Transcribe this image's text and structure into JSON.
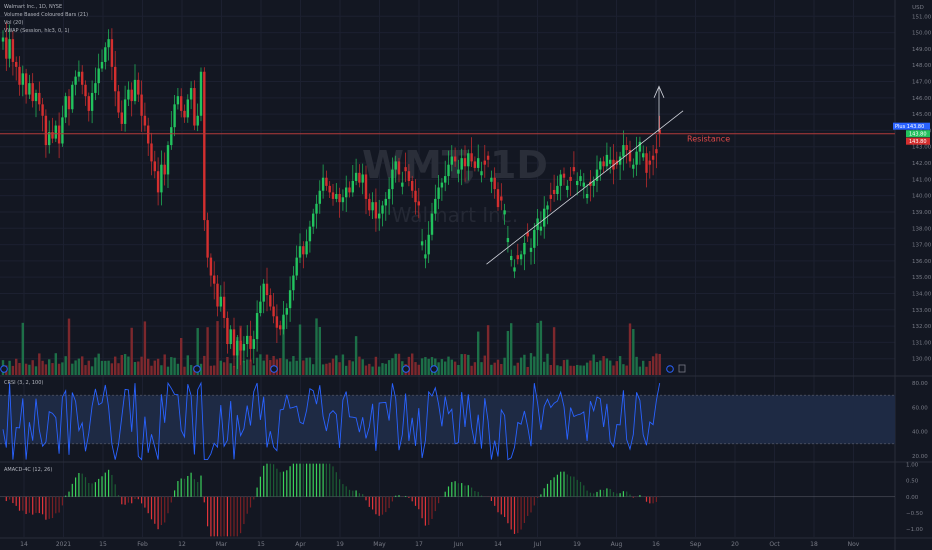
{
  "header": {
    "symbol_line": "Walmart Inc., 1D, NYSE",
    "indicators": [
      "Volume Based Coloured Bars (21)",
      "Vol (20)",
      "VWAP (Session, hlc3, 0, 1)"
    ],
    "currency": "USD"
  },
  "watermark": {
    "ticker": "WMT, 1D",
    "name": "Walmart Inc."
  },
  "annotations": {
    "resistance_label": "Resistance"
  },
  "price_tags": {
    "plus": "Plus",
    "last": "143.80",
    "plus_value": "143.80"
  },
  "event_badges": [
    "D",
    "E"
  ],
  "colors": {
    "background": "#131722",
    "up": "#22c35e",
    "down": "#d32f2f",
    "resistance": "#b23a3a",
    "crsi_line": "#2962ff",
    "crsi_band": "#1e2a44",
    "macd_pos": "#3bd15a",
    "macd_neg": "#e0343a",
    "text": "#787b86"
  },
  "chart_data": [
    {
      "type": "candlestick",
      "title": "Walmart Inc., 1D, NYSE",
      "ylabel": "USD",
      "ylim": [
        129,
        152
      ],
      "y_ticks": [
        130,
        131,
        132,
        133,
        134,
        135,
        136,
        137,
        138,
        139,
        140,
        141,
        142,
        143,
        144,
        145,
        146,
        147,
        148,
        149,
        150,
        151
      ],
      "x_ticks": [
        "14",
        "2021",
        "15",
        "Feb",
        "12",
        "Mar",
        "15",
        "Apr",
        "19",
        "May",
        "17",
        "Jun",
        "14",
        "Jul",
        "19",
        "Aug",
        "16",
        "Sep",
        "20",
        "Oct",
        "18",
        "Nov"
      ],
      "resistance_level": 143.8,
      "trendline": [
        [
          135.8,
          0.522
        ],
        [
          145.2,
          0.69
        ]
      ],
      "close": [
        149.7,
        148.4,
        149.6,
        148.2,
        147.9,
        146.8,
        147.5,
        146.2,
        146.9,
        145.8,
        146.3,
        145.6,
        144.9,
        143.1,
        143.9,
        143.5,
        144.3,
        143.2,
        144.8,
        146.1,
        145.3,
        146.8,
        147.3,
        147.6,
        146.8,
        146.1,
        145.2,
        146.3,
        146.9,
        147.8,
        148.2,
        149.1,
        149.6,
        147.9,
        146.4,
        145.1,
        144.4,
        145.9,
        146.5,
        145.8,
        147.1,
        146.2,
        144.9,
        144.3,
        143.2,
        142.1,
        141.5,
        140.2,
        141.9,
        141.3,
        143.1,
        144.2,
        145.6,
        146.1,
        145.2,
        144.8,
        145.9,
        146.6,
        144.3,
        144.9,
        147.6,
        138.5,
        136.2,
        135.1,
        134.6,
        133.2,
        133.8,
        132.5,
        130.9,
        131.8,
        130.2,
        131.1,
        130.5,
        130.9,
        131.4,
        130.6,
        131.2,
        132.8,
        133.5,
        134.6,
        133.9,
        133.2,
        132.6,
        131.9,
        131.8,
        132.7,
        133.1,
        134.2,
        135.1,
        136.2,
        136.9,
        136.4,
        137.2,
        138.1,
        138.9,
        139.5,
        140.3,
        141.1,
        140.6,
        140.2,
        139.8,
        140.1,
        139.6,
        139.9,
        140.5,
        140.2,
        140.9,
        141.4,
        140.8,
        141.3,
        139.8,
        139.1,
        139.6,
        138.6,
        138.9,
        139.4,
        139.8,
        140.4,
        141.6,
        142.1,
        141.3,
        140.8,
        141.5,
        140.9,
        140.3,
        139.6,
        139.4,
        137.2,
        136.4,
        137.6,
        138.9,
        139.8,
        140.5,
        140.8,
        141.2,
        141.9,
        142.4,
        142.1,
        141.6,
        142.3,
        141.8,
        142.6,
        142.1,
        141.7,
        142.3,
        141.5,
        141.9,
        142.2,
        141.1,
        140.4,
        139.3,
        139.7,
        139.1,
        137.4,
        136.3,
        135.6,
        136.1,
        136.4,
        137.1,
        137.5,
        136.8,
        137.9,
        138.6,
        138.1,
        139.2,
        139.4,
        139.8,
        140.1,
        140.6,
        141.3,
        141.1,
        140.6,
        140.9,
        141.5,
        140.9,
        141.2,
        140.8,
        140.1,
        140.6,
        140.9,
        141.6,
        142.1,
        141.8,
        142.5,
        142.2,
        141.6,
        141.9,
        142.4,
        143.1,
        142.8,
        142.1,
        141.9,
        142.7,
        143.3,
        142.6,
        141.4,
        141.9,
        142.2,
        142.6,
        143.8
      ],
      "up_days": [
        0,
        2,
        6,
        8,
        10,
        14,
        16,
        18,
        19,
        21,
        22,
        23,
        27,
        28,
        29,
        30,
        31,
        32,
        37,
        38,
        40,
        48,
        50,
        51,
        52,
        53,
        56,
        57,
        59,
        60,
        66,
        69,
        71,
        73,
        74,
        76,
        77,
        78,
        79,
        85,
        86,
        87,
        88,
        89,
        90,
        92,
        93,
        94,
        95,
        96,
        97,
        101,
        103,
        104,
        106,
        107,
        109,
        112,
        114,
        115,
        116,
        117,
        118,
        119,
        121,
        127,
        128,
        129,
        130,
        131,
        132,
        133,
        134,
        135,
        136,
        138,
        139,
        141,
        144,
        145,
        148,
        152,
        153,
        154,
        155,
        157,
        158,
        160,
        161,
        162,
        163,
        164,
        165,
        168,
        169,
        171,
        174,
        175,
        176,
        177,
        179,
        180,
        181,
        183,
        184,
        187,
        188,
        191,
        192,
        193,
        194
      ]
    },
    {
      "type": "bar",
      "title": "Vol (20)",
      "note": "volume histogram (relative)"
    },
    {
      "type": "line",
      "title": "CRSI (3, 2, 100)",
      "ylim": [
        15,
        85
      ],
      "y_ticks": [
        20,
        40,
        60,
        80
      ],
      "band": [
        30,
        70
      ]
    },
    {
      "type": "bar",
      "title": "AMACD-4C (12, 26)",
      "ylim": [
        -1.25,
        1.05
      ],
      "y_ticks": [
        1.0,
        0.5,
        0.0,
        -0.5,
        -1.0
      ],
      "y_tick_labels": [
        "1.00",
        "0.50",
        "0.00",
        "−0.50",
        "−1.00"
      ]
    }
  ]
}
